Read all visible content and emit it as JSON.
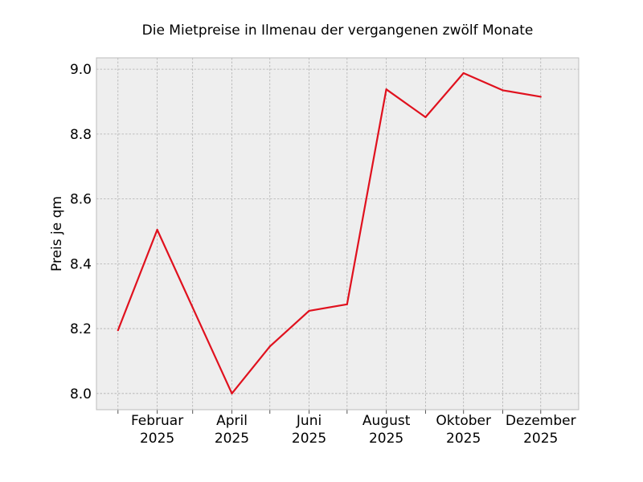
{
  "chart_data": {
    "type": "line",
    "title": "Die Mietpreise in Ilmenau der vergangenen zwölf Monate",
    "xlabel": "",
    "ylabel": "Preis je qm",
    "x": [
      "2025-01",
      "2025-02",
      "2025-03",
      "2025-04",
      "2025-05",
      "2025-06",
      "2025-07",
      "2025-08",
      "2025-09",
      "2025-10",
      "2025-11",
      "2025-12"
    ],
    "series": [
      {
        "values": [
          8.195,
          8.505,
          8.265,
          8.0,
          8.145,
          8.255,
          8.275,
          8.938,
          8.852,
          8.988,
          8.935,
          8.915
        ],
        "color": "#e0111e"
      }
    ],
    "xlim": [
      "2024-12-15",
      "2025-12-31"
    ],
    "ylim": [
      7.95,
      9.035
    ],
    "yticks": [
      "8.0",
      "8.2",
      "8.4",
      "8.6",
      "8.8",
      "9.0"
    ],
    "xtick_labels": [
      {
        "month": "Februar",
        "year": "2025"
      },
      {
        "month": "April",
        "year": "2025"
      },
      {
        "month": "Juni",
        "year": "2025"
      },
      {
        "month": "August",
        "year": "2025"
      },
      {
        "month": "Oktober",
        "year": "2025"
      },
      {
        "month": "Dezember",
        "year": "2025"
      }
    ],
    "grid": true,
    "background_color": "#eeeeee",
    "grid_color": "#b0b0b0",
    "spine_color": "#bcbcbc"
  }
}
